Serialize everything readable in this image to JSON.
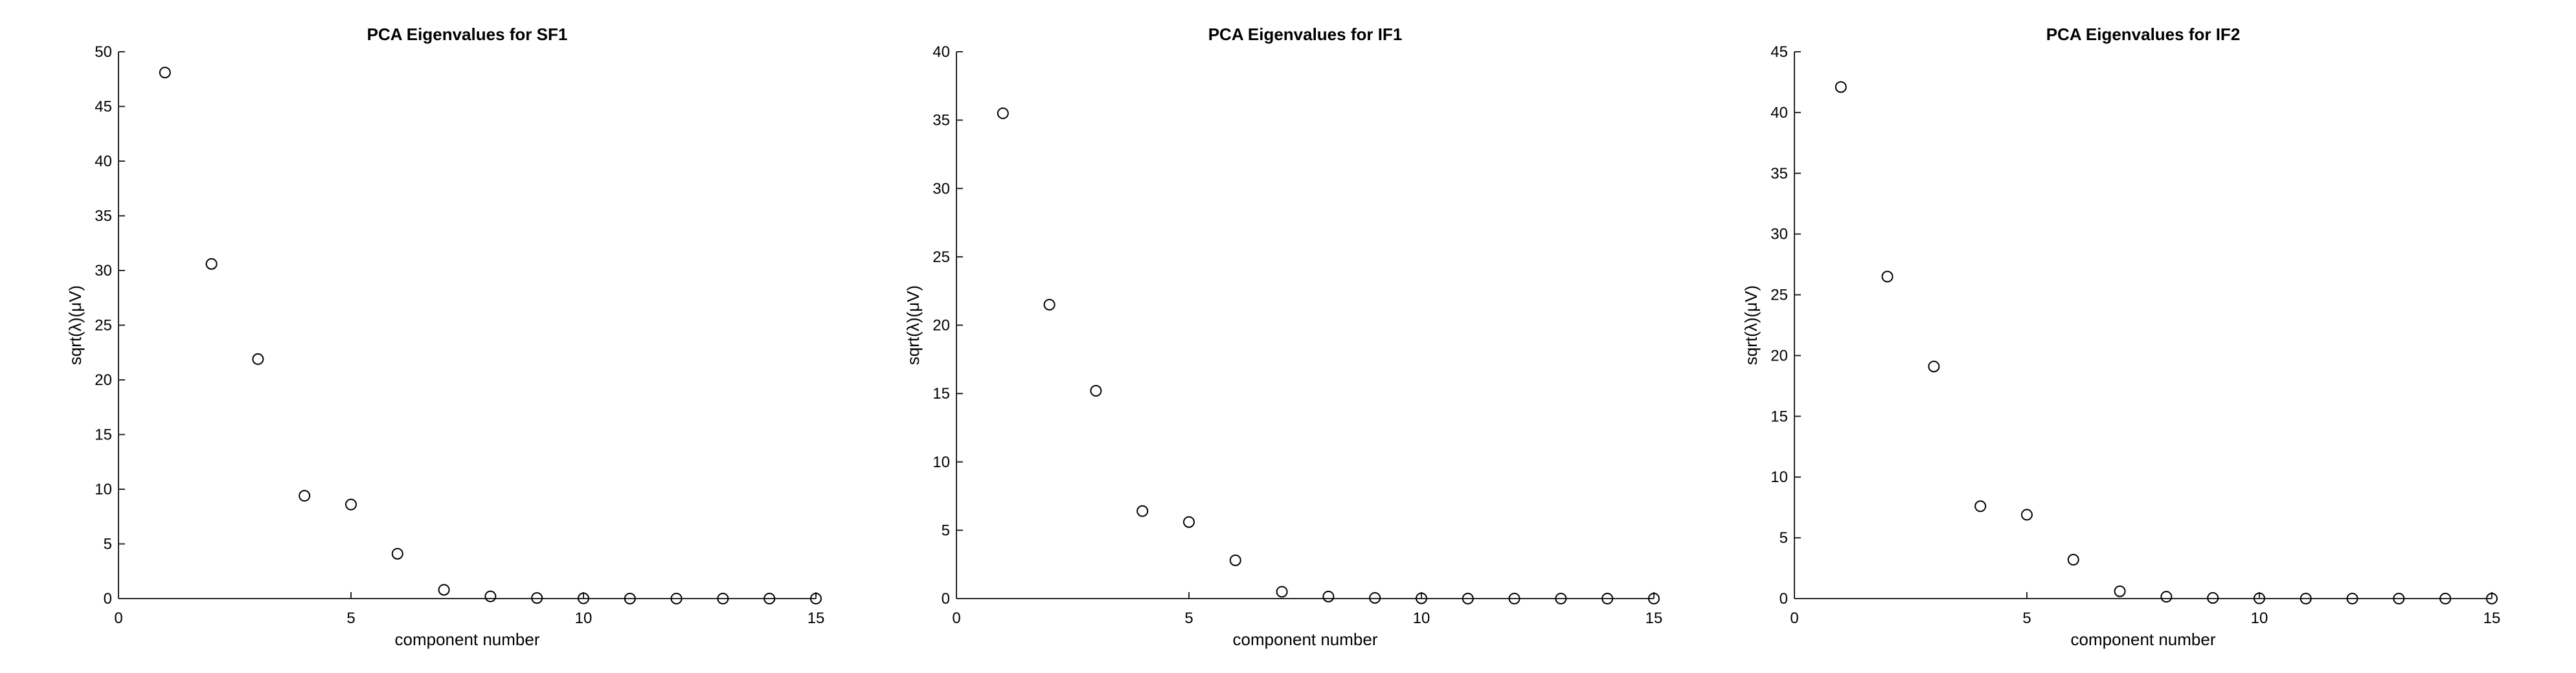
{
  "chart_data": [
    {
      "type": "scatter",
      "title": "PCA Eigenvalues for SF1",
      "xlabel": "component number",
      "ylabel": "sqrt(λ)(μV)",
      "xlim": [
        0,
        15
      ],
      "ylim": [
        0,
        50
      ],
      "xticks": [
        0,
        5,
        10,
        15
      ],
      "yticks": [
        0,
        5,
        10,
        15,
        20,
        25,
        30,
        35,
        40,
        45,
        50
      ],
      "grid": false,
      "marker": "open-circle",
      "x": [
        1,
        2,
        3,
        4,
        5,
        6,
        7,
        8,
        9,
        10,
        11,
        12,
        13,
        14,
        15
      ],
      "y": [
        48.1,
        30.6,
        21.9,
        9.4,
        8.6,
        4.1,
        0.8,
        0.2,
        0.05,
        0.02,
        0.0,
        0.0,
        0.0,
        0.0,
        0.0
      ]
    },
    {
      "type": "scatter",
      "title": "PCA Eigenvalues for IF1",
      "xlabel": "component number",
      "ylabel": "sqrt(λ)(μV)",
      "xlim": [
        0,
        15
      ],
      "ylim": [
        0,
        40
      ],
      "xticks": [
        0,
        5,
        10,
        15
      ],
      "yticks": [
        0,
        5,
        10,
        15,
        20,
        25,
        30,
        35,
        40
      ],
      "grid": false,
      "marker": "open-circle",
      "x": [
        1,
        2,
        3,
        4,
        5,
        6,
        7,
        8,
        9,
        10,
        11,
        12,
        13,
        14,
        15
      ],
      "y": [
        35.5,
        21.5,
        15.2,
        6.4,
        5.6,
        2.8,
        0.5,
        0.15,
        0.05,
        0.02,
        0.0,
        0.0,
        0.0,
        0.0,
        0.0
      ]
    },
    {
      "type": "scatter",
      "title": "PCA Eigenvalues for IF2",
      "xlabel": "component number",
      "ylabel": "sqrt(λ)(μV)",
      "xlim": [
        0,
        15
      ],
      "ylim": [
        0,
        45
      ],
      "xticks": [
        0,
        5,
        10,
        15
      ],
      "yticks": [
        0,
        5,
        10,
        15,
        20,
        25,
        30,
        35,
        40,
        45
      ],
      "grid": false,
      "marker": "open-circle",
      "x": [
        1,
        2,
        3,
        4,
        5,
        6,
        7,
        8,
        9,
        10,
        11,
        12,
        13,
        14,
        15
      ],
      "y": [
        42.1,
        26.5,
        19.1,
        7.6,
        6.9,
        3.2,
        0.6,
        0.15,
        0.05,
        0.02,
        0.0,
        0.0,
        0.0,
        0.0,
        0.0
      ]
    }
  ]
}
